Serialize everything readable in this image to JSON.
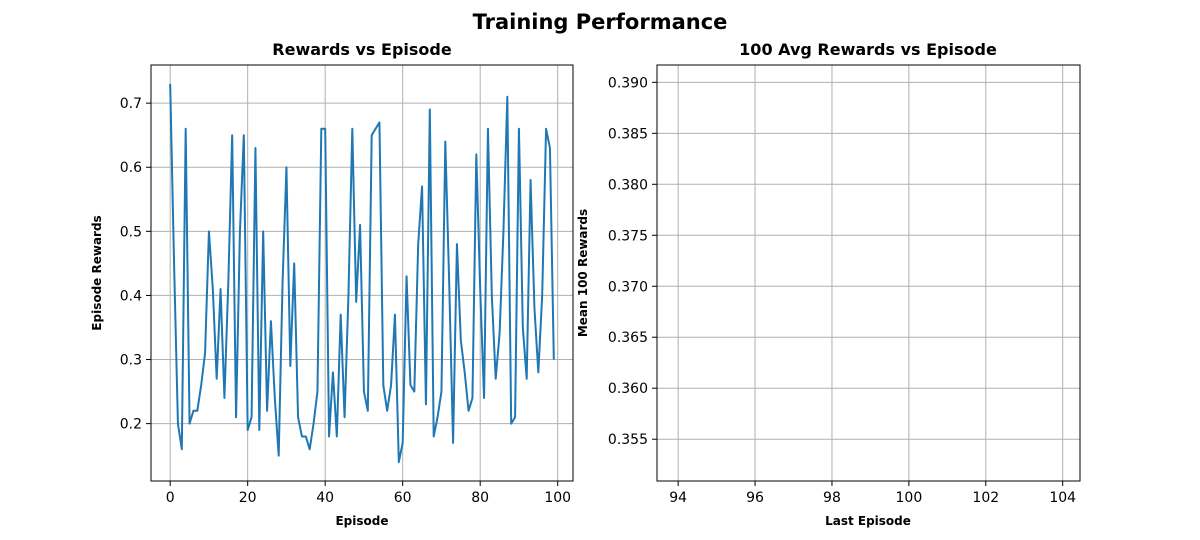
{
  "figure": {
    "title": "Training Performance"
  },
  "chart_data": [
    {
      "type": "line",
      "title": "Rewards vs Episode",
      "xlabel": "Episode",
      "ylabel": "Episode Rewards",
      "xlim": [
        -4.95,
        103.95
      ],
      "ylim": [
        0.1105,
        0.7595
      ],
      "xticks": [
        0,
        20,
        40,
        60,
        80,
        100
      ],
      "yticks": [
        0.2,
        0.3,
        0.4,
        0.5,
        0.6,
        0.7
      ],
      "xtick_labels": [
        "0",
        "20",
        "40",
        "60",
        "80",
        "100"
      ],
      "ytick_labels": [
        "0.2",
        "0.3",
        "0.4",
        "0.5",
        "0.6",
        "0.7"
      ],
      "grid": true,
      "color": "#1f77b4",
      "x": [
        0,
        1,
        2,
        3,
        4,
        5,
        6,
        7,
        8,
        9,
        10,
        11,
        12,
        13,
        14,
        15,
        16,
        17,
        18,
        19,
        20,
        21,
        22,
        23,
        24,
        25,
        26,
        27,
        28,
        29,
        30,
        31,
        32,
        33,
        34,
        35,
        36,
        37,
        38,
        39,
        40,
        41,
        42,
        43,
        44,
        45,
        46,
        47,
        48,
        49,
        50,
        51,
        52,
        53,
        54,
        55,
        56,
        57,
        58,
        59,
        60,
        61,
        62,
        63,
        64,
        65,
        66,
        67,
        68,
        69,
        70,
        71,
        72,
        73,
        74,
        75,
        76,
        77,
        78,
        79,
        80,
        81,
        82,
        83,
        84,
        85,
        86,
        87,
        88,
        89,
        90,
        91,
        92,
        93,
        94,
        95,
        96,
        97,
        98,
        99
      ],
      "y": [
        0.73,
        0.45,
        0.2,
        0.16,
        0.66,
        0.2,
        0.22,
        0.22,
        0.26,
        0.31,
        0.5,
        0.41,
        0.27,
        0.41,
        0.24,
        0.42,
        0.65,
        0.21,
        0.5,
        0.65,
        0.19,
        0.21,
        0.63,
        0.19,
        0.5,
        0.22,
        0.36,
        0.24,
        0.15,
        0.42,
        0.6,
        0.29,
        0.45,
        0.21,
        0.18,
        0.18,
        0.16,
        0.2,
        0.25,
        0.66,
        0.66,
        0.18,
        0.28,
        0.18,
        0.37,
        0.21,
        0.4,
        0.66,
        0.39,
        0.51,
        0.25,
        0.22,
        0.65,
        0.66,
        0.67,
        0.26,
        0.22,
        0.26,
        0.37,
        0.14,
        0.17,
        0.43,
        0.26,
        0.25,
        0.48,
        0.57,
        0.23,
        0.69,
        0.18,
        0.21,
        0.25,
        0.64,
        0.42,
        0.17,
        0.48,
        0.33,
        0.28,
        0.22,
        0.24,
        0.62,
        0.41,
        0.24,
        0.66,
        0.4,
        0.27,
        0.34,
        0.5,
        0.71,
        0.2,
        0.21,
        0.66,
        0.35,
        0.27,
        0.58,
        0.38,
        0.28,
        0.4,
        0.66,
        0.63,
        0.3
      ]
    },
    {
      "type": "line",
      "title": "100 Avg Rewards vs Episode",
      "xlabel": "Last Episode",
      "ylabel": "Mean 100 Rewards",
      "xlim": [
        93.45,
        104.45
      ],
      "ylim": [
        0.3509,
        0.3917
      ],
      "xticks": [
        94,
        96,
        98,
        100,
        102,
        104
      ],
      "yticks": [
        0.355,
        0.36,
        0.365,
        0.37,
        0.375,
        0.38,
        0.385,
        0.39
      ],
      "xtick_labels": [
        "94",
        "96",
        "98",
        "100",
        "102",
        "104"
      ],
      "ytick_labels": [
        "0.355",
        "0.360",
        "0.365",
        "0.370",
        "0.375",
        "0.380",
        "0.385",
        "0.390"
      ],
      "grid": true,
      "color": "#1f77b4",
      "x": [],
      "y": []
    }
  ]
}
